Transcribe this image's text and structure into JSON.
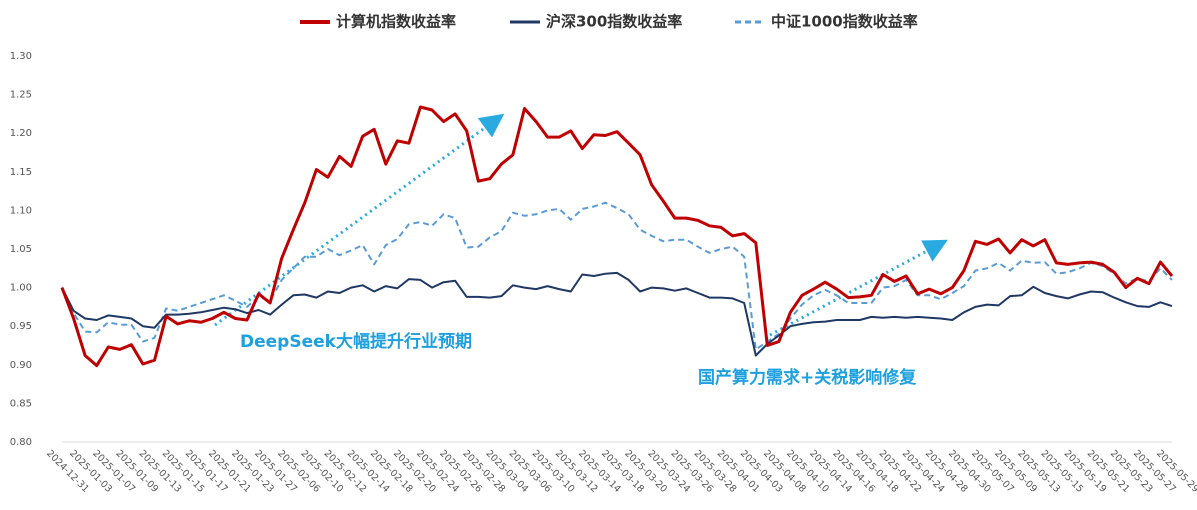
{
  "chart_data": {
    "type": "line",
    "categories": [
      "2024-12-31",
      null,
      "2025-01-03",
      null,
      "2025-01-07",
      null,
      "2025-01-09",
      null,
      "2025-01-13",
      null,
      "2025-01-15",
      null,
      "2025-01-17",
      null,
      "2025-01-21",
      null,
      "2025-01-23",
      null,
      "2025-01-27",
      null,
      "2025-02-06",
      null,
      "2025-02-10",
      null,
      "2025-02-12",
      null,
      "2025-02-14",
      null,
      "2025-02-18",
      null,
      "2025-02-20",
      null,
      "2025-02-24",
      null,
      "2025-02-26",
      null,
      "2025-02-28",
      null,
      "2025-03-04",
      null,
      "2025-03-06",
      null,
      "2025-03-10",
      null,
      "2025-03-12",
      null,
      "2025-03-14",
      null,
      "2025-03-18",
      null,
      "2025-03-20",
      null,
      "2025-03-24",
      null,
      "2025-03-26",
      null,
      "2025-03-28",
      null,
      "2025-04-01",
      null,
      "2025-04-03",
      null,
      "2025-04-08",
      null,
      "2025-04-10",
      null,
      "2025-04-14",
      null,
      "2025-04-16",
      null,
      "2025-04-18",
      null,
      "2025-04-22",
      null,
      "2025-04-24",
      null,
      "2025-04-28",
      null,
      "2025-04-30",
      null,
      "2025-05-07",
      null,
      "2025-05-09",
      null,
      "2025-05-13",
      null,
      "2025-05-15",
      null,
      "2025-05-19",
      null,
      "2025-05-21",
      null,
      "2025-05-23",
      null,
      "2025-05-27",
      null,
      "2025-05-29"
    ],
    "series": [
      {
        "name": "计算机指数收益率",
        "color": "#c00000",
        "line_style": "solid",
        "width": 3,
        "values": [
          1.0,
          0.96,
          0.912,
          0.899,
          0.923,
          0.92,
          0.926,
          0.901,
          0.906,
          0.963,
          0.953,
          0.957,
          0.955,
          0.96,
          0.968,
          0.96,
          0.958,
          0.992,
          0.98,
          1.038,
          1.075,
          1.11,
          1.153,
          1.143,
          1.17,
          1.157,
          1.196,
          1.205,
          1.16,
          1.19,
          1.187,
          1.234,
          1.23,
          1.215,
          1.225,
          1.203,
          1.138,
          1.141,
          1.16,
          1.172,
          1.232,
          1.215,
          1.195,
          1.195,
          1.203,
          1.18,
          1.198,
          1.197,
          1.202,
          1.187,
          1.172,
          1.133,
          1.112,
          1.09,
          1.09,
          1.087,
          1.08,
          1.078,
          1.067,
          1.07,
          1.058,
          0.925,
          0.93,
          0.968,
          0.99,
          0.998,
          1.007,
          0.998,
          0.987,
          0.988,
          0.99,
          1.017,
          1.008,
          1.015,
          0.992,
          0.998,
          0.992,
          1.0,
          1.022,
          1.06,
          1.056,
          1.063,
          1.045,
          1.062,
          1.054,
          1.062,
          1.032,
          1.03,
          1.032,
          1.033,
          1.03,
          1.02,
          1.0,
          1.012,
          1.005,
          1.033,
          1.015
        ]
      },
      {
        "name": "沪深300指数收益率",
        "color": "#1f3864",
        "line_style": "solid",
        "width": 2,
        "values": [
          1.0,
          0.97,
          0.96,
          0.958,
          0.964,
          0.962,
          0.96,
          0.95,
          0.948,
          0.965,
          0.965,
          0.966,
          0.968,
          0.971,
          0.974,
          0.972,
          0.967,
          0.971,
          0.965,
          0.978,
          0.99,
          0.991,
          0.987,
          0.995,
          0.993,
          1.0,
          1.003,
          0.995,
          1.002,
          0.999,
          1.011,
          1.01,
          1.0,
          1.007,
          1.009,
          0.988,
          0.988,
          0.987,
          0.989,
          1.003,
          1.0,
          0.998,
          1.002,
          0.998,
          0.995,
          1.017,
          1.015,
          1.018,
          1.019,
          1.01,
          0.995,
          1.0,
          0.999,
          0.996,
          0.999,
          0.993,
          0.987,
          0.987,
          0.986,
          0.98,
          0.912,
          0.927,
          0.938,
          0.95,
          0.953,
          0.955,
          0.956,
          0.958,
          0.958,
          0.958,
          0.962,
          0.961,
          0.962,
          0.961,
          0.962,
          0.961,
          0.96,
          0.958,
          0.968,
          0.975,
          0.978,
          0.977,
          0.989,
          0.99,
          1.001,
          0.993,
          0.989,
          0.986,
          0.991,
          0.995,
          0.994,
          0.987,
          0.981,
          0.976,
          0.975,
          0.981,
          0.976
        ]
      },
      {
        "name": "中证1000指数收益率",
        "color": "#5b9bd5",
        "line_style": "dashed",
        "width": 2,
        "values": [
          1.0,
          0.967,
          0.943,
          0.942,
          0.955,
          0.952,
          0.952,
          0.93,
          0.935,
          0.973,
          0.97,
          0.975,
          0.98,
          0.985,
          0.99,
          0.983,
          0.975,
          0.988,
          0.983,
          1.01,
          1.025,
          1.04,
          1.04,
          1.05,
          1.042,
          1.048,
          1.055,
          1.03,
          1.055,
          1.063,
          1.082,
          1.085,
          1.08,
          1.095,
          1.09,
          1.052,
          1.053,
          1.065,
          1.073,
          1.097,
          1.093,
          1.095,
          1.1,
          1.102,
          1.088,
          1.102,
          1.105,
          1.11,
          1.103,
          1.095,
          1.075,
          1.067,
          1.06,
          1.062,
          1.062,
          1.053,
          1.045,
          1.05,
          1.053,
          1.04,
          0.92,
          0.93,
          0.94,
          0.96,
          0.978,
          0.99,
          0.997,
          0.99,
          0.98,
          0.98,
          0.98,
          1.0,
          1.002,
          1.01,
          0.99,
          0.99,
          0.985,
          0.993,
          1.002,
          1.022,
          1.025,
          1.032,
          1.022,
          1.035,
          1.032,
          1.033,
          1.018,
          1.02,
          1.025,
          1.032,
          1.028,
          1.018,
          1.005,
          1.012,
          1.008,
          1.025,
          1.01
        ]
      }
    ],
    "ylim": [
      0.8,
      1.3
    ],
    "yticks": [
      {
        "value": 1.3,
        "label": "1.30"
      },
      1.25,
      {
        "value": 1.2,
        "label": "1.20"
      },
      1.15,
      {
        "value": 1.1,
        "label": "1.10"
      },
      1.05,
      {
        "value": 1.0,
        "label": "1.00"
      },
      0.95,
      {
        "value": 0.9,
        "label": "0.90"
      },
      0.85,
      {
        "value": 0.8,
        "label": "0.80"
      }
    ],
    "grid": false,
    "legend": "top",
    "annotations": [
      "DeepSeek大幅提升行业预期",
      "国产算力需求+关税影响修复"
    ]
  }
}
